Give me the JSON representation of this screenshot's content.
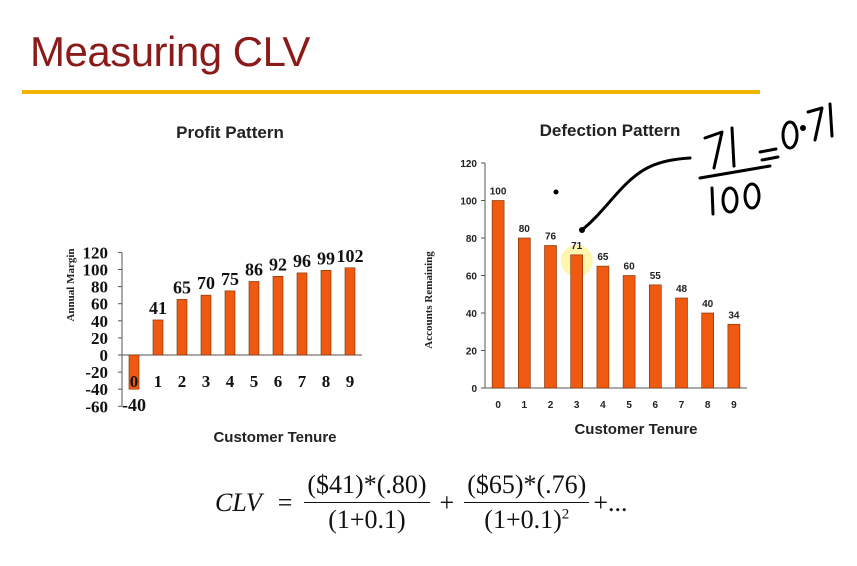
{
  "slide": {
    "title": "Measuring CLV",
    "accent_color": "#8b1a1a",
    "rule_color": "#f0b400"
  },
  "chart_data": [
    {
      "type": "bar",
      "title": "Profit Pattern",
      "xlabel": "Customer Tenure",
      "ylabel": "Annual Margin",
      "categories": [
        "0",
        "1",
        "2",
        "3",
        "4",
        "5",
        "6",
        "7",
        "8",
        "9"
      ],
      "values": [
        -40,
        41,
        65,
        70,
        75,
        86,
        92,
        96,
        99,
        102
      ],
      "data_labels": [
        "-40",
        "41",
        "65",
        "70",
        "75",
        "86",
        "92",
        "96",
        "99",
        "102"
      ],
      "yticks": [
        "120",
        "100",
        "80",
        "60",
        "40",
        "20",
        "0",
        "-20",
        "-40",
        "-60"
      ],
      "ylim": [
        -60,
        120
      ],
      "bar_color": "#f05a10",
      "grid": false
    },
    {
      "type": "bar",
      "title": "Defection Pattern",
      "xlabel": "Customer Tenure",
      "ylabel": "Accounts Remaining",
      "categories": [
        "0",
        "1",
        "2",
        "3",
        "4",
        "5",
        "6",
        "7",
        "8",
        "9"
      ],
      "values": [
        100,
        80,
        76,
        71,
        65,
        60,
        55,
        48,
        40,
        34
      ],
      "data_labels": [
        "100",
        "80",
        "76",
        "71",
        "65",
        "60",
        "55",
        "48",
        "40",
        "34"
      ],
      "yticks": [
        "120",
        "100",
        "80",
        "60",
        "40",
        "20",
        "0"
      ],
      "ylim": [
        0,
        120
      ],
      "bar_color": "#f05a10",
      "highlight_category": "3",
      "highlight_color": "#fff3a0",
      "grid": false
    }
  ],
  "annotation": {
    "handwritten_text": "71/100 = 0.71"
  },
  "formula": {
    "lhs": "CLV",
    "equals": "=",
    "term1_numerator": "($41)*(.80)",
    "term1_denominator": "(1+0.1)",
    "plus": "+",
    "term2_numerator": "($65)*(.76)",
    "term2_denominator": "(1+0.1)",
    "term2_exponent": "2",
    "tail": "+..."
  }
}
